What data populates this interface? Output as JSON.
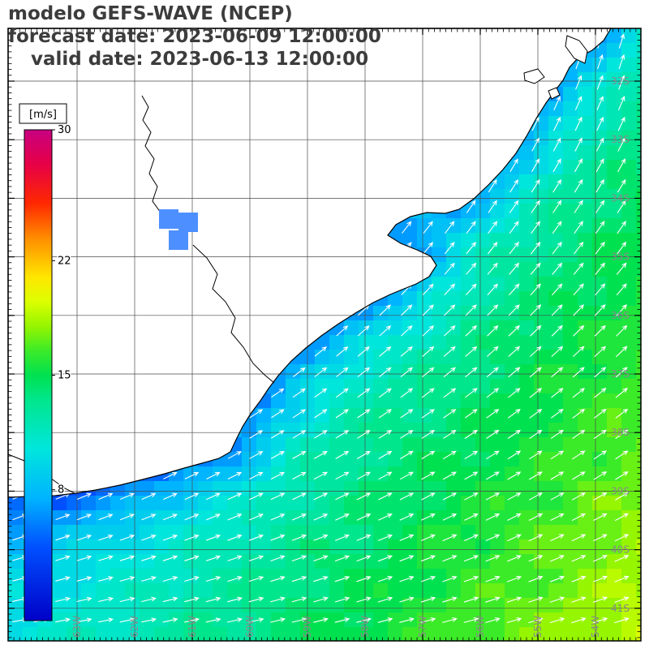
{
  "title": {
    "line1": "modelo GEFS-WAVE (NCEP)",
    "line2": "forecast date: 2023-06-09 12:00:00",
    "line3": "valid date: 2023-06-13 12:00:00"
  },
  "colorbar": {
    "unit": "[m/s]",
    "min": 0,
    "max": 30,
    "ticks": [
      30,
      22,
      15,
      8
    ],
    "stops": [
      {
        "t": 0.0,
        "c": "#0000c8"
      },
      {
        "t": 0.15,
        "c": "#0050ff"
      },
      {
        "t": 0.25,
        "c": "#00b4ff"
      },
      {
        "t": 0.35,
        "c": "#00e6dc"
      },
      {
        "t": 0.45,
        "c": "#00e68c"
      },
      {
        "t": 0.5,
        "c": "#00e150"
      },
      {
        "t": 0.55,
        "c": "#3ceb28"
      },
      {
        "t": 0.6,
        "c": "#96f500"
      },
      {
        "t": 0.65,
        "c": "#dcff00"
      },
      {
        "t": 0.7,
        "c": "#ffe600"
      },
      {
        "t": 0.78,
        "c": "#ff8c00"
      },
      {
        "t": 0.85,
        "c": "#ff2800"
      },
      {
        "t": 0.93,
        "c": "#e60046"
      },
      {
        "t": 1.0,
        "c": "#c80082"
      }
    ]
  },
  "map": {
    "lat_labels": [
      "32S",
      "33S",
      "34S",
      "35S",
      "36S",
      "37S",
      "38S",
      "39S",
      "40S",
      "41S"
    ],
    "lon_labels": [
      "63W",
      "62W",
      "61W",
      "60W",
      "59W",
      "58W",
      "57W",
      "56W",
      "55W",
      "54W"
    ],
    "arrow_color": "#ffffff",
    "grid_color": "#4a4a4a",
    "label_color": "#8a8a8a",
    "coast_color": "#000000",
    "land_color": "#ffffff",
    "lake_color": "#4d8fff",
    "frame_color": "#000000"
  }
}
